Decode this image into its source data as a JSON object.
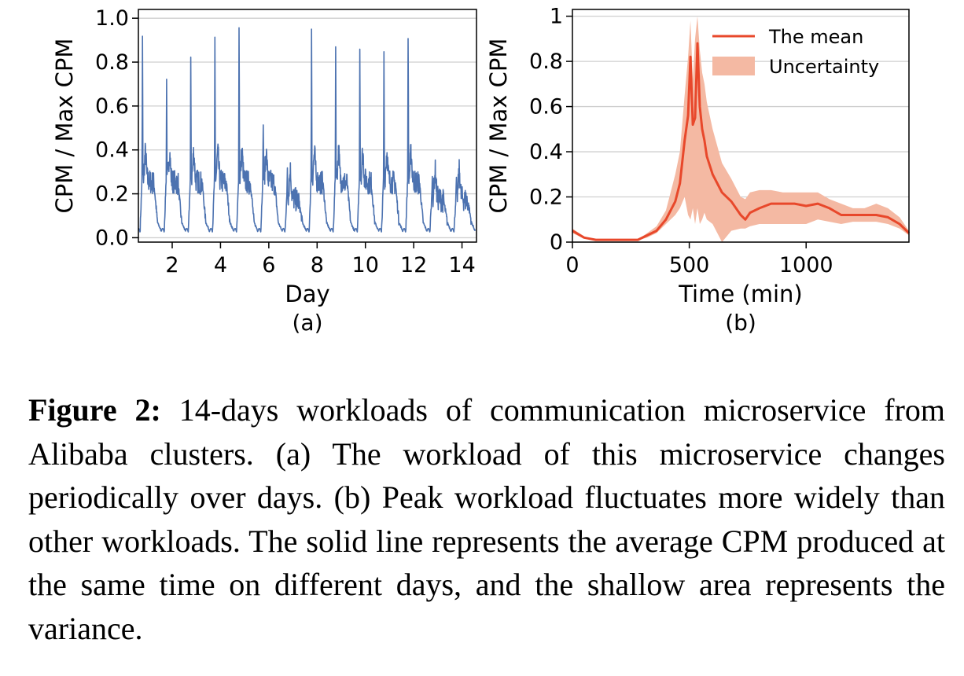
{
  "chart_data": [
    {
      "type": "line",
      "panel_label": "(a)",
      "xlabel": "Day",
      "ylabel": "CPM / Max CPM",
      "xlim": [
        0.6,
        14.6
      ],
      "ylim": [
        -0.02,
        1.04
      ],
      "xticks": [
        2,
        4,
        6,
        8,
        10,
        12,
        14
      ],
      "xtick_labels": [
        "2",
        "4",
        "6",
        "8",
        "10",
        "12",
        "14"
      ],
      "yticks": [
        0.0,
        0.2,
        0.4,
        0.6,
        0.8,
        1.0
      ],
      "ytick_labels": [
        "0.0",
        "0.2",
        "0.4",
        "0.6",
        "0.8",
        "1.0"
      ],
      "grid": "horizontal",
      "color": "#4c72b0",
      "daily_peaks": [
        {
          "day": 1,
          "peak": 0.96
        },
        {
          "day": 2,
          "peak": 0.75
        },
        {
          "day": 3,
          "peak": 0.85
        },
        {
          "day": 4,
          "peak": 0.95
        },
        {
          "day": 5,
          "peak": 1.0
        },
        {
          "day": 6,
          "peak": 0.54
        },
        {
          "day": 7,
          "peak": 0.33
        },
        {
          "day": 8,
          "peak": 1.0
        },
        {
          "day": 9,
          "peak": 0.91
        },
        {
          "day": 10,
          "peak": 0.9
        },
        {
          "day": 11,
          "peak": 0.88
        },
        {
          "day": 12,
          "peak": 0.96
        },
        {
          "day": 13,
          "peak": 0.28
        },
        {
          "day": 14,
          "peak": 0.28
        }
      ],
      "daily_baseline": 0.03
    },
    {
      "type": "area",
      "panel_label": "(b)",
      "xlabel": "Time (min)",
      "ylabel": "CPM / Max CPM",
      "xlim": [
        0,
        1440
      ],
      "ylim": [
        0,
        1.03
      ],
      "xticks": [
        0,
        500,
        1000
      ],
      "xtick_labels": [
        "0",
        "500",
        "1000"
      ],
      "yticks": [
        0,
        0.2,
        0.4,
        0.6,
        0.8,
        1
      ],
      "ytick_labels": [
        "0",
        "0.2",
        "0.4",
        "0.6",
        "0.8",
        "1"
      ],
      "grid": "horizontal",
      "legend": {
        "placement": "top-right",
        "entries": [
          "The mean",
          "Uncertainty"
        ]
      },
      "mean_color": "#e8482b",
      "band_color": "#f4b9a3",
      "series": [
        {
          "name": "The mean",
          "x": [
            0,
            50,
            100,
            200,
            280,
            320,
            360,
            400,
            440,
            460,
            480,
            495,
            505,
            515,
            525,
            535,
            545,
            555,
            565,
            575,
            600,
            640,
            680,
            720,
            740,
            760,
            800,
            850,
            900,
            950,
            1000,
            1050,
            1100,
            1150,
            1200,
            1250,
            1300,
            1350,
            1400,
            1440
          ],
          "y": [
            0.05,
            0.02,
            0.01,
            0.01,
            0.01,
            0.03,
            0.05,
            0.1,
            0.18,
            0.26,
            0.45,
            0.56,
            0.82,
            0.52,
            0.55,
            0.88,
            0.6,
            0.5,
            0.45,
            0.38,
            0.3,
            0.22,
            0.18,
            0.12,
            0.1,
            0.13,
            0.15,
            0.17,
            0.17,
            0.17,
            0.16,
            0.17,
            0.15,
            0.12,
            0.12,
            0.12,
            0.12,
            0.11,
            0.08,
            0.04
          ]
        },
        {
          "name": "Uncertainty",
          "x": [
            0,
            50,
            100,
            200,
            280,
            320,
            360,
            400,
            440,
            460,
            480,
            495,
            505,
            515,
            525,
            535,
            545,
            555,
            565,
            575,
            600,
            640,
            680,
            720,
            740,
            760,
            800,
            850,
            900,
            950,
            1000,
            1050,
            1100,
            1150,
            1200,
            1250,
            1300,
            1350,
            1400,
            1440
          ],
          "lower": [
            0.04,
            0.015,
            0.008,
            0.008,
            0.008,
            0.02,
            0.04,
            0.08,
            0.12,
            0.15,
            0.2,
            0.12,
            0.1,
            0.15,
            0.08,
            0.15,
            0.08,
            0.1,
            0.13,
            0.1,
            0.08,
            0.0,
            0.05,
            0.06,
            0.06,
            0.07,
            0.08,
            0.08,
            0.08,
            0.08,
            0.08,
            0.1,
            0.09,
            0.08,
            0.09,
            0.09,
            0.09,
            0.08,
            0.06,
            0.03
          ],
          "upper": [
            0.06,
            0.025,
            0.012,
            0.012,
            0.012,
            0.04,
            0.07,
            0.14,
            0.3,
            0.4,
            0.65,
            0.82,
            0.98,
            0.72,
            0.9,
            1.0,
            0.85,
            0.75,
            0.7,
            0.62,
            0.5,
            0.35,
            0.28,
            0.2,
            0.19,
            0.22,
            0.23,
            0.23,
            0.22,
            0.22,
            0.22,
            0.22,
            0.19,
            0.17,
            0.15,
            0.15,
            0.17,
            0.15,
            0.11,
            0.05
          ]
        }
      ]
    }
  ],
  "caption": {
    "label": "Figure 2:",
    "text": "14-days workloads of communication microservice from Alibaba clusters. (a) The workload of this microservice changes periodically over days. (b) Peak workload fluctuates more widely than other workloads. The solid line represents the average CPM produced at the same time on different days, and the shallow area represents the variance."
  }
}
